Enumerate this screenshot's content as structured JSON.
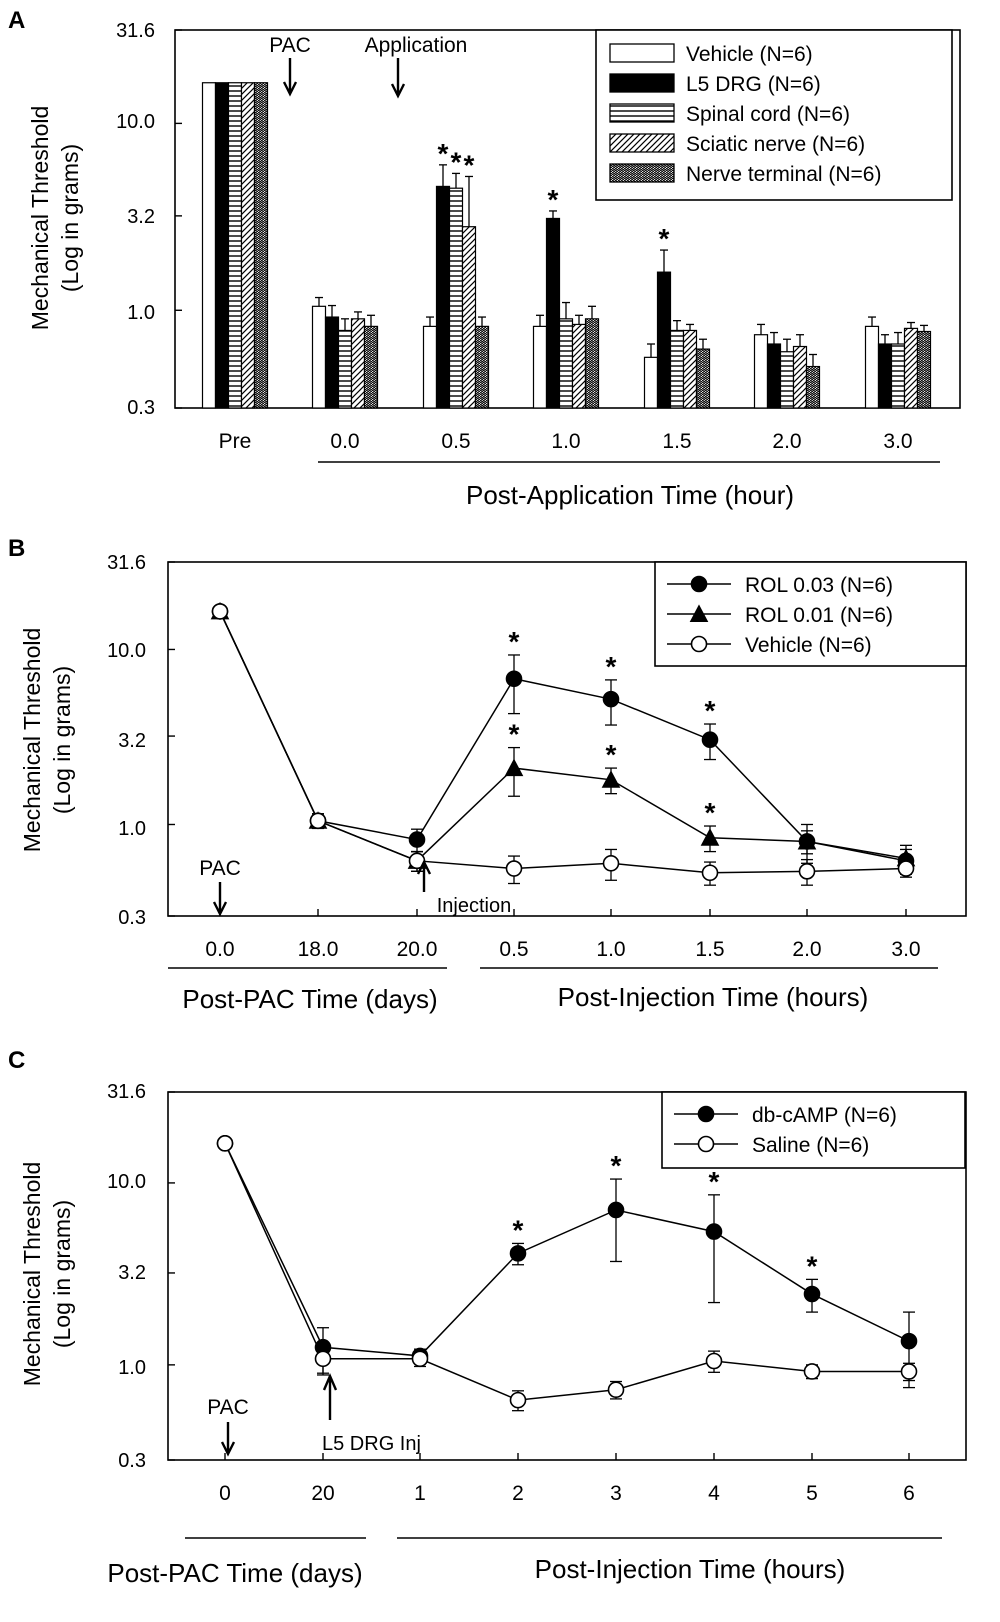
{
  "panel_letters": [
    "A",
    "B",
    "C"
  ],
  "chart_data": [
    {
      "panel": "A",
      "type": "bar",
      "scale": "log",
      "ylabel_line1": "Mechanical Threshold",
      "ylabel_line2": "(Log in grams)",
      "yticks": [
        "31.6",
        "10.0",
        "3.2",
        "1.0",
        "0.3"
      ],
      "ytick_values": [
        31.6,
        10.0,
        3.2,
        1.0,
        0.3
      ],
      "ylim": [
        0.3,
        31.6
      ],
      "categories": [
        "Pre",
        "0.0",
        "0.5",
        "1.0",
        "1.5",
        "2.0",
        "3.0"
      ],
      "xlabel": "Post-Application Time (hour)",
      "annotations": [
        "PAC",
        "Application"
      ],
      "legend_position": "top-right",
      "series": [
        {
          "name": "Vehicle (N=6)",
          "pattern": "white",
          "values": [
            16.5,
            1.05,
            0.82,
            0.82,
            0.56,
            0.74,
            0.82
          ],
          "errors": [
            0,
            0.12,
            0.1,
            0.12,
            0.1,
            0.1,
            0.1
          ],
          "sig": [
            false,
            false,
            false,
            false,
            false,
            false,
            false
          ]
        },
        {
          "name": "L5 DRG (N=6)",
          "pattern": "black",
          "values": [
            16.5,
            0.92,
            4.6,
            3.1,
            1.6,
            0.66,
            0.66
          ],
          "errors": [
            0,
            0.14,
            1.4,
            0.3,
            0.5,
            0.1,
            0.08
          ],
          "sig": [
            false,
            false,
            true,
            true,
            true,
            false,
            false
          ]
        },
        {
          "name": "Spinal cord (N=6)",
          "pattern": "hstripe",
          "values": [
            16.5,
            0.78,
            4.5,
            0.9,
            0.78,
            0.6,
            0.66
          ],
          "errors": [
            0,
            0.12,
            0.9,
            0.2,
            0.1,
            0.1,
            0.1
          ],
          "sig": [
            false,
            false,
            true,
            false,
            false,
            false,
            false
          ]
        },
        {
          "name": "Sciatic nerve (N=6)",
          "pattern": "diag",
          "values": [
            16.5,
            0.9,
            2.8,
            0.84,
            0.78,
            0.64,
            0.8
          ],
          "errors": [
            0,
            0.08,
            2.4,
            0.1,
            0.06,
            0.1,
            0.06
          ],
          "sig": [
            false,
            false,
            true,
            false,
            false,
            false,
            false
          ]
        },
        {
          "name": "Nerve terminal (N=6)",
          "pattern": "dense",
          "values": [
            16.5,
            0.82,
            0.82,
            0.9,
            0.62,
            0.5,
            0.77
          ],
          "errors": [
            0,
            0.12,
            0.1,
            0.15,
            0.08,
            0.08,
            0.06
          ],
          "sig": [
            false,
            false,
            false,
            false,
            false,
            false,
            false
          ]
        }
      ]
    },
    {
      "panel": "B",
      "type": "line",
      "scale": "log",
      "ylabel_line1": "Mechanical Threshold",
      "ylabel_line2": "(Log in grams)",
      "yticks": [
        "31.6",
        "10.0",
        "3.2",
        "1.0",
        "0.3"
      ],
      "ytick_values": [
        31.6,
        10.0,
        3.2,
        1.0,
        0.3
      ],
      "ylim": [
        0.3,
        31.6
      ],
      "categories": [
        "0.0",
        "18.0",
        "20.0",
        "0.5",
        "1.0",
        "1.5",
        "2.0",
        "3.0"
      ],
      "xlabel_left": "Post-PAC Time (days)",
      "xlabel_right": "Post-Injection Time (hours)",
      "annotations": [
        "PAC",
        "Injection"
      ],
      "legend_position": "top-right",
      "series": [
        {
          "name": "ROL 0.03 (N=6)",
          "marker": "filled-circle",
          "values": [
            16.5,
            1.05,
            0.82,
            6.8,
            5.2,
            3.05,
            0.8,
            0.62
          ],
          "errors": [
            0,
            0.1,
            0.12,
            2.5,
            1.5,
            0.7,
            0.2,
            0.1
          ],
          "sig": [
            false,
            false,
            false,
            true,
            true,
            true,
            false,
            false
          ]
        },
        {
          "name": "ROL 0.01 (N=6)",
          "marker": "filled-triangle",
          "values": [
            16.5,
            1.05,
            0.62,
            2.1,
            1.8,
            0.84,
            0.8,
            0.64
          ],
          "errors": [
            0,
            0.1,
            0.08,
            0.65,
            0.3,
            0.14,
            0.12,
            0.12
          ],
          "sig": [
            false,
            false,
            false,
            true,
            true,
            true,
            false,
            false
          ]
        },
        {
          "name": "Vehicle (N=6)",
          "marker": "open-circle",
          "values": [
            16.5,
            1.05,
            0.62,
            0.56,
            0.6,
            0.53,
            0.54,
            0.56
          ],
          "errors": [
            0,
            0.1,
            0.08,
            0.1,
            0.12,
            0.08,
            0.09,
            0.06
          ],
          "sig": [
            false,
            false,
            false,
            false,
            false,
            false,
            false,
            false
          ]
        }
      ]
    },
    {
      "panel": "C",
      "type": "line",
      "scale": "log",
      "ylabel_line1": "Mechanical Threshold",
      "ylabel_line2": "(Log in grams)",
      "yticks": [
        "31.6",
        "10.0",
        "3.2",
        "1.0",
        "0.3"
      ],
      "ytick_values": [
        31.6,
        10.0,
        3.2,
        1.0,
        0.3
      ],
      "ylim": [
        0.3,
        31.6
      ],
      "categories": [
        "0",
        "20",
        "1",
        "2",
        "3",
        "4",
        "5",
        "6"
      ],
      "xlabel_left": "Post-PAC Time (days)",
      "xlabel_right": "Post-Injection Time (hours)",
      "annotations": [
        "PAC",
        "L5 DRG Inj"
      ],
      "legend_position": "top-right",
      "series": [
        {
          "name": "db-cAMP (N=6)",
          "marker": "filled-circle",
          "values": [
            16.5,
            1.25,
            1.12,
            4.1,
            7.1,
            5.4,
            2.45,
            1.35
          ],
          "errors": [
            0,
            0.35,
            0.1,
            0.55,
            3.4,
            3.2,
            0.5,
            0.6
          ],
          "sig": [
            false,
            false,
            false,
            true,
            true,
            true,
            true,
            false
          ]
        },
        {
          "name": "Saline (N=6)",
          "marker": "open-circle",
          "values": [
            16.5,
            1.08,
            1.08,
            0.64,
            0.73,
            1.05,
            0.92,
            0.92
          ],
          "errors": [
            0,
            0.2,
            0.1,
            0.08,
            0.08,
            0.14,
            0.08,
            0.1
          ],
          "sig": [
            false,
            false,
            false,
            false,
            false,
            false,
            false,
            false
          ]
        }
      ]
    }
  ]
}
